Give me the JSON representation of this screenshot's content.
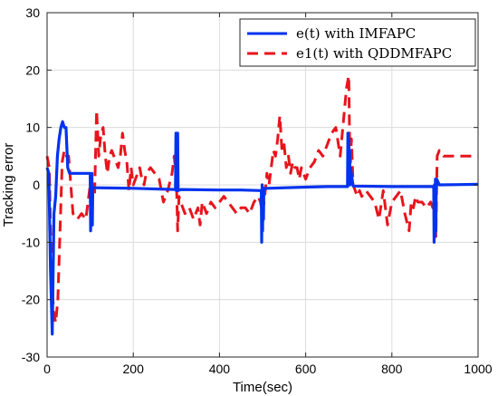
{
  "chart_data": {
    "type": "line",
    "xlabel": "Time(sec)",
    "ylabel": "Tracking error",
    "xlim": [
      0,
      1000
    ],
    "ylim": [
      -30,
      30
    ],
    "xticks": [
      0,
      200,
      400,
      600,
      800,
      1000
    ],
    "yticks": [
      -30,
      -20,
      -10,
      0,
      10,
      20,
      30
    ],
    "grid": true,
    "legend_position": "top-right",
    "series": [
      {
        "name": "e(t) with IMFAPC",
        "color": "#0033ee",
        "dash": "solid",
        "x": [
          0,
          4,
          8,
          12,
          16,
          20,
          24,
          28,
          32,
          36,
          40,
          44,
          48,
          52,
          56,
          60,
          100,
          101,
          102,
          103,
          104,
          105,
          106,
          110,
          200,
          298,
          299,
          300,
          301,
          302,
          303,
          304,
          310,
          400,
          450,
          497,
          498,
          499,
          500,
          501,
          502,
          503,
          510,
          600,
          650,
          697,
          698,
          699,
          700,
          701,
          702,
          703,
          704,
          710,
          800,
          897,
          898,
          899,
          900,
          901,
          902,
          903,
          904,
          910,
          1000
        ],
        "y": [
          3,
          2,
          -15,
          -26,
          -5,
          -2,
          5,
          8,
          10,
          11,
          10,
          10,
          3,
          2,
          2,
          2,
          2,
          -8,
          1,
          -7,
          2,
          -7,
          -0.5,
          -0.5,
          -0.6,
          -0.8,
          9,
          -1,
          9,
          -1,
          9,
          -1,
          -0.8,
          -0.9,
          -0.9,
          -1,
          -10,
          0,
          -8,
          -0.5,
          -6,
          -0.7,
          -0.6,
          -0.4,
          -0.3,
          -0.3,
          9,
          0,
          8,
          0,
          6,
          0,
          3,
          -0.2,
          -0.3,
          -0.3,
          -10,
          0,
          -9,
          1,
          -8,
          1,
          1,
          0,
          0.1
        ]
      },
      {
        "name": "e1(t) with QDDMFAPC",
        "color": "#e8141c",
        "dash": "dashed",
        "x": [
          0,
          5,
          10,
          15,
          20,
          25,
          30,
          35,
          40,
          45,
          50,
          60,
          70,
          80,
          90,
          95,
          100,
          103,
          106,
          110,
          115,
          120,
          125,
          130,
          135,
          140,
          145,
          150,
          155,
          160,
          165,
          170,
          175,
          180,
          185,
          190,
          195,
          200,
          205,
          210,
          215,
          220,
          225,
          230,
          240,
          250,
          260,
          270,
          280,
          290,
          295,
          300,
          303,
          306,
          310,
          320,
          330,
          340,
          350,
          355,
          360,
          370,
          380,
          390,
          400,
          410,
          420,
          430,
          440,
          450,
          460,
          470,
          480,
          490,
          495,
          500,
          505,
          510,
          515,
          520,
          525,
          530,
          535,
          540,
          545,
          550,
          555,
          560,
          565,
          570,
          575,
          580,
          585,
          590,
          600,
          610,
          620,
          630,
          640,
          650,
          660,
          670,
          680,
          690,
          695,
          700,
          703,
          706,
          710,
          715,
          720,
          725,
          730,
          740,
          750,
          760,
          770,
          780,
          790,
          800,
          810,
          820,
          830,
          840,
          845,
          850,
          855,
          860,
          870,
          880,
          890,
          895,
          900,
          902,
          905,
          910,
          920,
          1000
        ],
        "y": [
          5,
          3,
          -15,
          -22,
          -24,
          -20,
          -8,
          4,
          6,
          5,
          5,
          -5,
          -6,
          -5,
          -6,
          -3,
          0,
          -5,
          0,
          -2,
          13,
          5,
          9,
          10,
          5,
          2,
          5,
          6,
          5,
          4,
          3,
          5,
          9,
          6,
          4,
          -1,
          3,
          0,
          1,
          2,
          3,
          1,
          0,
          2,
          3,
          2,
          1,
          -3,
          -1,
          2,
          5,
          1,
          -8,
          -2,
          -3,
          -5,
          -4,
          -6,
          -4,
          -7,
          -3,
          -5,
          -3,
          -4,
          -3,
          -2,
          -3,
          -4,
          -5,
          -4,
          -4,
          -5,
          -3,
          -2,
          -3,
          -5,
          -2,
          2,
          0,
          3,
          6,
          5,
          8,
          12,
          6,
          7,
          3,
          5,
          2,
          4,
          3,
          3,
          1,
          3,
          1,
          3,
          4,
          6,
          5,
          7,
          9,
          10,
          5,
          13,
          17,
          19,
          2,
          8,
          0,
          -1,
          -2,
          -1,
          -2,
          -1,
          -2,
          -3,
          -6,
          -1,
          -7,
          -3,
          -2,
          -1,
          -5,
          -8,
          -3,
          -4,
          -2,
          -3,
          -3,
          -4,
          -3,
          -4,
          -2,
          -9,
          5,
          6,
          5,
          5
        ]
      }
    ]
  }
}
